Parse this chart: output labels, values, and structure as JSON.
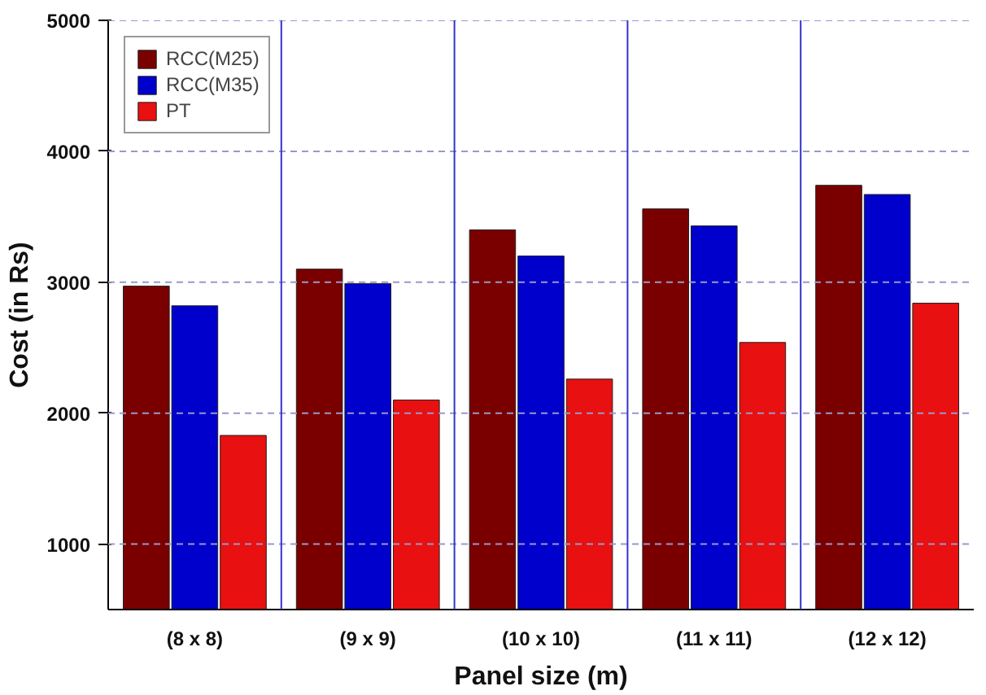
{
  "chart_data": {
    "type": "bar",
    "xlabel": "Panel size (m)",
    "ylabel": "Cost (in Rs)",
    "categories": [
      "(8 x 8)",
      "(9 x 9)",
      "(10 x 10)",
      "(11 x 11)",
      "(12 x 12)"
    ],
    "series": [
      {
        "name": "RCC(M25)",
        "color": "#7a0000",
        "values": [
          2970,
          3100,
          3400,
          3560,
          3740
        ]
      },
      {
        "name": "RCC(M35)",
        "color": "#0000cc",
        "values": [
          2820,
          2990,
          3200,
          3430,
          3670
        ]
      },
      {
        "name": "PT",
        "color": "#e81010",
        "values": [
          1830,
          2100,
          2260,
          2540,
          2840
        ]
      }
    ],
    "ylim": [
      500,
      5000
    ],
    "yticks": [
      1000,
      2000,
      3000,
      4000,
      5000
    ],
    "grid": true,
    "legend": "top left"
  }
}
